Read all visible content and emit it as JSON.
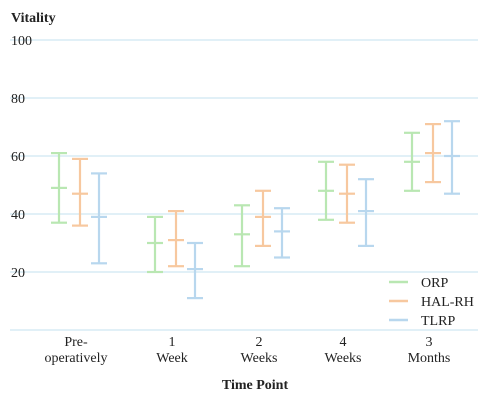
{
  "chart_data": {
    "type": "error-bar",
    "ylabel": "Vitality",
    "xlabel": "Time Point",
    "ylim": [
      0,
      100
    ],
    "yticks": [
      20,
      40,
      60,
      80,
      100
    ],
    "grid": true,
    "legend_position": "bottom-right",
    "categories": [
      [
        "Pre-",
        "operatively"
      ],
      [
        "1",
        "Week"
      ],
      [
        "2",
        "Weeks"
      ],
      [
        "4",
        "Weeks"
      ],
      [
        "3",
        "Months"
      ]
    ],
    "series": [
      {
        "name": "ORP",
        "color": "#b9e7b2",
        "mean": [
          49,
          30,
          33,
          48,
          58
        ],
        "low": [
          37,
          20,
          22,
          38,
          48
        ],
        "high": [
          61,
          39,
          43,
          58,
          68
        ]
      },
      {
        "name": "HAL-RH",
        "color": "#f7c89f",
        "mean": [
          47,
          31,
          39,
          47,
          61
        ],
        "low": [
          36,
          22,
          29,
          37,
          51
        ],
        "high": [
          59,
          41,
          48,
          57,
          71
        ]
      },
      {
        "name": "TLRP",
        "color": "#b8d7ee",
        "mean": [
          39,
          21,
          34,
          41,
          60
        ],
        "low": [
          23,
          11,
          25,
          29,
          47
        ],
        "high": [
          54,
          30,
          42,
          52,
          72
        ]
      }
    ]
  }
}
